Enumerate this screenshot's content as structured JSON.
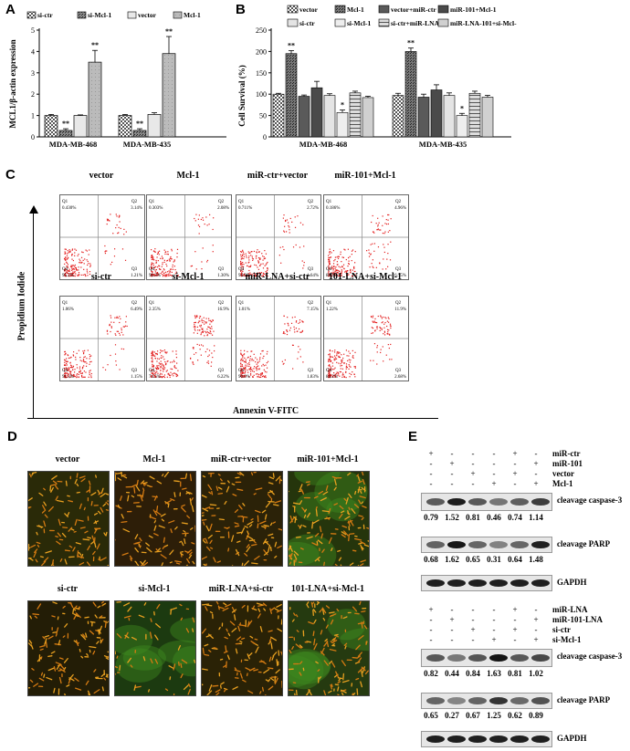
{
  "panels": {
    "A": "A",
    "B": "B",
    "C": "C",
    "D": "D",
    "E": "E"
  },
  "chartA": {
    "legend": [
      "si-ctr",
      "si-Mcl-1",
      "vector",
      "Mcl-1"
    ],
    "ylabel": "MCL1/β-actin expression",
    "yticks": [
      "0",
      "1",
      "2",
      "3",
      "4",
      "5"
    ],
    "groups": [
      "MDA-MB-468",
      "MDA-MB-435"
    ],
    "sig": [
      "**",
      "**",
      "**",
      "**"
    ]
  },
  "chartB": {
    "legend": [
      "vector",
      "Mcl-1",
      "vector+miR-ctr",
      "miR-101+Mcl-1",
      "si-ctr",
      "si-Mcl-1",
      "si-ctr+miR-LNA",
      "miR-LNA-101+si-Mcl-"
    ],
    "ylabel": "Cell Survival (%)",
    "yticks": [
      "0",
      "50",
      "100",
      "150",
      "200",
      "250"
    ],
    "groups": [
      "MDA-MB-468",
      "MDA-MB-435"
    ],
    "sig": [
      "**",
      "*",
      "**",
      "*"
    ]
  },
  "chart_data": [
    {
      "type": "bar",
      "title": "",
      "ylabel": "MCL1/β-actin expression",
      "ylim": [
        0,
        5
      ],
      "categories": [
        "MDA-MB-468",
        "MDA-MB-435"
      ],
      "series": [
        {
          "name": "si-ctr",
          "values": [
            1.0,
            1.0
          ],
          "err": [
            0.05,
            0.05
          ]
        },
        {
          "name": "si-Mcl-1",
          "values": [
            0.3,
            0.3
          ],
          "err": [
            0.08,
            0.08
          ]
        },
        {
          "name": "vector",
          "values": [
            1.0,
            1.05
          ],
          "err": [
            0.03,
            0.08
          ]
        },
        {
          "name": "Mcl-1",
          "values": [
            3.5,
            3.9
          ],
          "err": [
            0.55,
            0.8
          ]
        }
      ]
    },
    {
      "type": "bar",
      "title": "",
      "ylabel": "Cell Survival (%)",
      "ylim": [
        0,
        250
      ],
      "categories": [
        "MDA-MB-468",
        "MDA-MB-435"
      ],
      "series": [
        {
          "name": "vector",
          "values": [
            100,
            97
          ],
          "err": [
            2,
            5
          ]
        },
        {
          "name": "Mcl-1",
          "values": [
            195,
            200
          ],
          "err": [
            7,
            8
          ]
        },
        {
          "name": "vector+miR-ctr",
          "values": [
            95,
            93
          ],
          "err": [
            3,
            7
          ]
        },
        {
          "name": "miR-101+Mcl-1",
          "values": [
            115,
            110
          ],
          "err": [
            15,
            12
          ]
        },
        {
          "name": "si-ctr",
          "values": [
            97,
            97
          ],
          "err": [
            4,
            6
          ]
        },
        {
          "name": "si-Mcl-1",
          "values": [
            57,
            50
          ],
          "err": [
            6,
            5
          ]
        },
        {
          "name": "si-ctr+miR-LNA",
          "values": [
            103,
            102
          ],
          "err": [
            4,
            5
          ]
        },
        {
          "name": "miR-LNA-101+si-Mcl-",
          "values": [
            92,
            93
          ],
          "err": [
            3,
            4
          ]
        }
      ]
    }
  ],
  "flow": {
    "ylabel": "Propidium Iodide",
    "xlabel": "Annexin V-FITC",
    "plots": [
      {
        "title": "vector",
        "q1": "0.430%",
        "q2": "3.14%",
        "q3": "1.21%",
        "q4": "95.2%"
      },
      {
        "title": "Mcl-1",
        "q1": "0.303%",
        "q2": "2.08%",
        "q3": "1.30%",
        "q4": "96.3%"
      },
      {
        "title": "miR-ctr+vector",
        "q1": "0.711%",
        "q2": "2.72%",
        "q3": "1.64%",
        "q4": "94.9%"
      },
      {
        "title": "miR-101+Mcl-1",
        "q1": "0.186%",
        "q2": "4.96%",
        "q3": "6.15%",
        "q4": "88.7%"
      },
      {
        "title": "si-ctr",
        "q1": "1.06%",
        "q2": "6.49%",
        "q3": "1.15%",
        "q4": "91.3%"
      },
      {
        "title": "si-Mcl-1",
        "q1": "2.35%",
        "q2": "16.9%",
        "q3": "6.22%",
        "q4": "74.5%"
      },
      {
        "title": "miR-LNA+si-ctr",
        "q1": "1.01%",
        "q2": "7.15%",
        "q3": "1.83%",
        "q4": "90.0%"
      },
      {
        "title": "101-LNA+si-Mcl-1",
        "q1": "1.22%",
        "q2": "11.9%",
        "q3": "2.68%",
        "q4": "84.2%"
      }
    ]
  },
  "mito": [
    "vector",
    "Mcl-1",
    "miR-ctr+vector",
    "miR-101+Mcl-1",
    "si-ctr",
    "si-Mcl-1",
    "miR-LNA+si-ctr",
    "101-LNA+si-Mcl-1"
  ],
  "westernTop": {
    "treatments": [
      "miR-ctr",
      "miR-101",
      "vector",
      "Mcl-1"
    ],
    "signs": [
      [
        "+",
        "-",
        "-",
        "-",
        "+",
        "-"
      ],
      [
        "-",
        "+",
        "-",
        "-",
        "-",
        "+"
      ],
      [
        "-",
        "-",
        "+",
        "-",
        "+",
        "-"
      ],
      [
        "-",
        "-",
        "-",
        "+",
        "-",
        "+"
      ]
    ],
    "caspase": "cleavage caspase-3",
    "caspaseVals": [
      "0.79",
      "1.52",
      "0.81",
      "0.46",
      "0.74",
      "1.14"
    ],
    "parp": "cleavage PARP",
    "parpVals": [
      "0.68",
      "1.62",
      "0.65",
      "0.31",
      "0.64",
      "1.48"
    ],
    "gapdh": "GAPDH"
  },
  "westernBottom": {
    "treatments": [
      "miR-LNA",
      "miR-101-LNA",
      "si-ctr",
      "si-Mcl-1"
    ],
    "signs": [
      [
        "+",
        "-",
        "-",
        "-",
        "+",
        "-"
      ],
      [
        "-",
        "+",
        "-",
        "-",
        "-",
        "+"
      ],
      [
        "-",
        "-",
        "+",
        "-",
        "+",
        "-"
      ],
      [
        "-",
        "-",
        "-",
        "+",
        "-",
        "+"
      ]
    ],
    "caspase": "cleavage caspase-3",
    "caspaseVals": [
      "0.82",
      "0.44",
      "0.84",
      "1.63",
      "0.81",
      "1.02"
    ],
    "parp": "cleavage PARP",
    "parpVals": [
      "0.65",
      "0.27",
      "0.67",
      "1.25",
      "0.62",
      "0.89"
    ],
    "gapdh": "GAPDH"
  }
}
